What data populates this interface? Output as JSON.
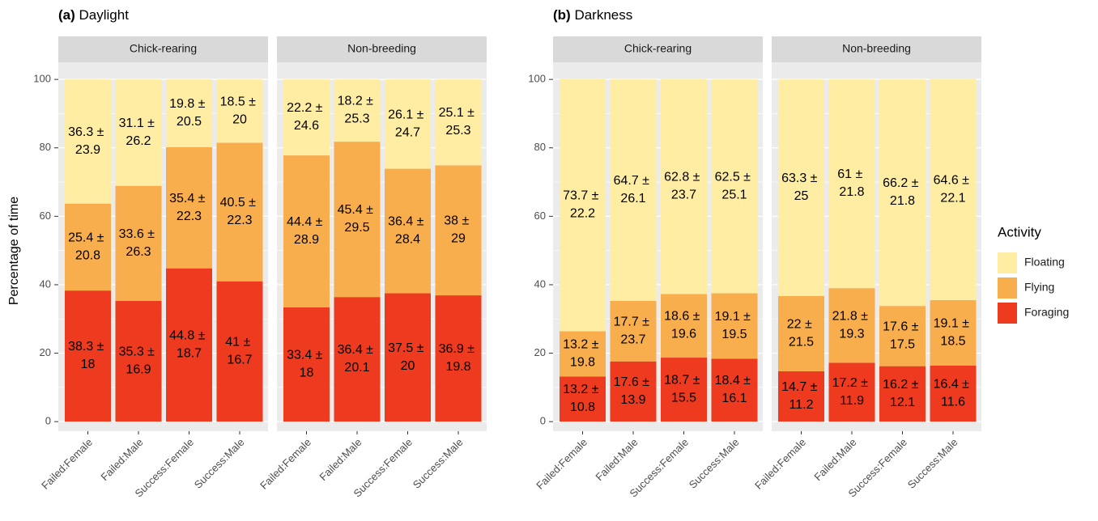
{
  "chart_data": [
    {
      "type": "bar",
      "stacked": true,
      "tag": "(a)",
      "title": "Daylight",
      "ylabel": "Percentage of time",
      "legend_title": "Activity",
      "ylim": [
        -2.8,
        105
      ],
      "yticks": [
        0,
        20,
        40,
        60,
        80,
        100
      ],
      "grid": true,
      "facets": [
        "Chick-rearing",
        "Non-breeding"
      ],
      "categories": [
        "Failed:Female",
        "Failed:Male",
        "Success:Female",
        "Success:Male"
      ],
      "series": [
        {
          "name": "Foraging",
          "color": "#ee3a1f",
          "values": [
            [
              38.3,
              35.3,
              44.8,
              41
            ],
            [
              33.4,
              36.4,
              37.5,
              36.9
            ]
          ],
          "value_labels": [
            [
              "38.3 ± 18",
              "35.3 ± 16.9",
              "44.8 ± 18.7",
              "41 ± 16.7"
            ],
            [
              "33.4 ± 18",
              "36.4 ± 20.1",
              "37.5 ± 20",
              "36.9 ± 19.8"
            ]
          ]
        },
        {
          "name": "Flying",
          "color": "#f9ae4e",
          "values": [
            [
              25.4,
              33.6,
              35.4,
              40.5
            ],
            [
              44.4,
              45.4,
              36.4,
              38
            ]
          ],
          "value_labels": [
            [
              "25.4 ± 20.8",
              "33.6 ± 26.3",
              "35.4 ± 22.3",
              "40.5 ± 22.3"
            ],
            [
              "44.4 ± 28.9",
              "45.4 ± 29.5",
              "36.4 ± 28.4",
              "38 ± 29"
            ]
          ]
        },
        {
          "name": "Floating",
          "color": "#feeda3",
          "values": [
            [
              36.3,
              31.1,
              19.8,
              18.5
            ],
            [
              22.2,
              18.2,
              26.1,
              25.1
            ]
          ],
          "value_labels": [
            [
              "36.3 ± 23.9",
              "31.1 ± 26.2",
              "19.8 ± 20.5",
              "18.5 ± 20"
            ],
            [
              "22.2 ± 24.6",
              "18.2 ± 25.3",
              "26.1 ± 24.7",
              "25.1 ± 25.3"
            ]
          ]
        }
      ]
    },
    {
      "type": "bar",
      "stacked": true,
      "tag": "(b)",
      "title": "Darkness",
      "legend": "right",
      "ylim": [
        -2.8,
        105
      ],
      "yticks": [
        0,
        20,
        40,
        60,
        80,
        100
      ],
      "grid": true,
      "facets": [
        "Chick-rearing",
        "Non-breeding"
      ],
      "categories": [
        "Failed:Female",
        "Failed:Male",
        "Success:Female",
        "Success:Male"
      ],
      "series": [
        {
          "name": "Foraging",
          "color": "#ee3a1f",
          "values": [
            [
              13.2,
              17.6,
              18.7,
              18.4
            ],
            [
              14.7,
              17.2,
              16.2,
              16.4
            ]
          ],
          "value_labels": [
            [
              "13.2 ± 10.8",
              "17.6 ± 13.9",
              "18.7 ± 15.5",
              "18.4 ± 16.1"
            ],
            [
              "14.7 ± 11.2",
              "17.2 ± 11.9",
              "16.2 ± 12.1",
              "16.4 ± 11.6"
            ]
          ]
        },
        {
          "name": "Flying",
          "color": "#f9ae4e",
          "values": [
            [
              13.2,
              17.7,
              18.6,
              19.1
            ],
            [
              22,
              21.8,
              17.6,
              19.1
            ]
          ],
          "value_labels": [
            [
              "13.2 ± 19.8",
              "17.7 ± 23.7",
              "18.6 ± 19.6",
              "19.1 ± 19.5"
            ],
            [
              "22 ± 21.5",
              "21.8 ± 19.3",
              "17.6 ± 17.5",
              "19.1 ± 18.5"
            ]
          ]
        },
        {
          "name": "Floating",
          "color": "#feeda3",
          "values": [
            [
              73.7,
              64.7,
              62.8,
              62.5
            ],
            [
              63.3,
              61,
              66.2,
              64.6
            ]
          ],
          "value_labels": [
            [
              "73.7 ± 22.2",
              "64.7 ± 26.1",
              "62.8 ± 23.7",
              "62.5 ± 25.1"
            ],
            [
              "63.3 ± 25",
              "61 ± 21.8",
              "66.2 ± 21.8",
              "64.6 ± 22.1"
            ]
          ]
        }
      ]
    }
  ]
}
